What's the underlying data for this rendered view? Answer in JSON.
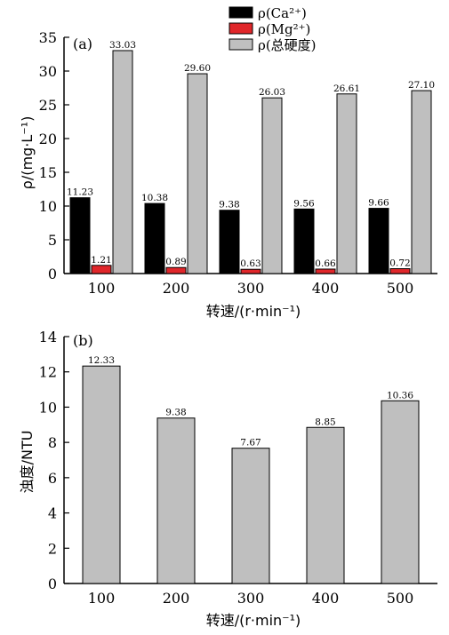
{
  "chart_data": [
    {
      "panel": "(a)",
      "type": "bar",
      "categories": [
        "100",
        "200",
        "300",
        "400",
        "500"
      ],
      "series": [
        {
          "name": "ρ(Ca²⁺)",
          "values": [
            11.23,
            10.38,
            9.38,
            9.56,
            9.66
          ],
          "color": "#000000"
        },
        {
          "name": "ρ(Mg²⁺)",
          "values": [
            1.21,
            0.89,
            0.63,
            0.66,
            0.72
          ],
          "color": "#e0262a"
        },
        {
          "name": "ρ(总硬度)",
          "values": [
            33.03,
            29.6,
            26.03,
            26.61,
            27.1
          ],
          "color": "#bfbfbf"
        }
      ],
      "data_labels": [
        [
          "11.23",
          "10.38",
          "9.38",
          "9.56",
          "9.66"
        ],
        [
          "1.21",
          "0.89",
          "0.63",
          "0.66",
          "0.72"
        ],
        [
          "33.03",
          "29.60",
          "26.03",
          "26.61",
          "27.10"
        ]
      ],
      "xlabel": "转速/(r·min⁻¹)",
      "ylabel": "ρ/(mg·L⁻¹)",
      "ylim": [
        0,
        35
      ],
      "yticks": [
        "0",
        "5",
        "10",
        "15",
        "20",
        "25",
        "30",
        "35"
      ],
      "grid": false,
      "legend": "top-center"
    },
    {
      "panel": "(b)",
      "type": "bar",
      "categories": [
        "100",
        "200",
        "300",
        "400",
        "500"
      ],
      "series": [
        {
          "values": [
            12.33,
            9.38,
            7.67,
            8.85,
            10.36
          ],
          "color": "#bfbfbf"
        }
      ],
      "data_labels": [
        [
          "12.33",
          "9.38",
          "7.67",
          "8.85",
          "10.36"
        ]
      ],
      "xlabel": "转速/(r·min⁻¹)",
      "ylabel": "浊度/NTU",
      "ylim": [
        0,
        14
      ],
      "yticks": [
        "0",
        "2",
        "4",
        "6",
        "8",
        "10",
        "12",
        "14"
      ],
      "grid": false
    }
  ]
}
